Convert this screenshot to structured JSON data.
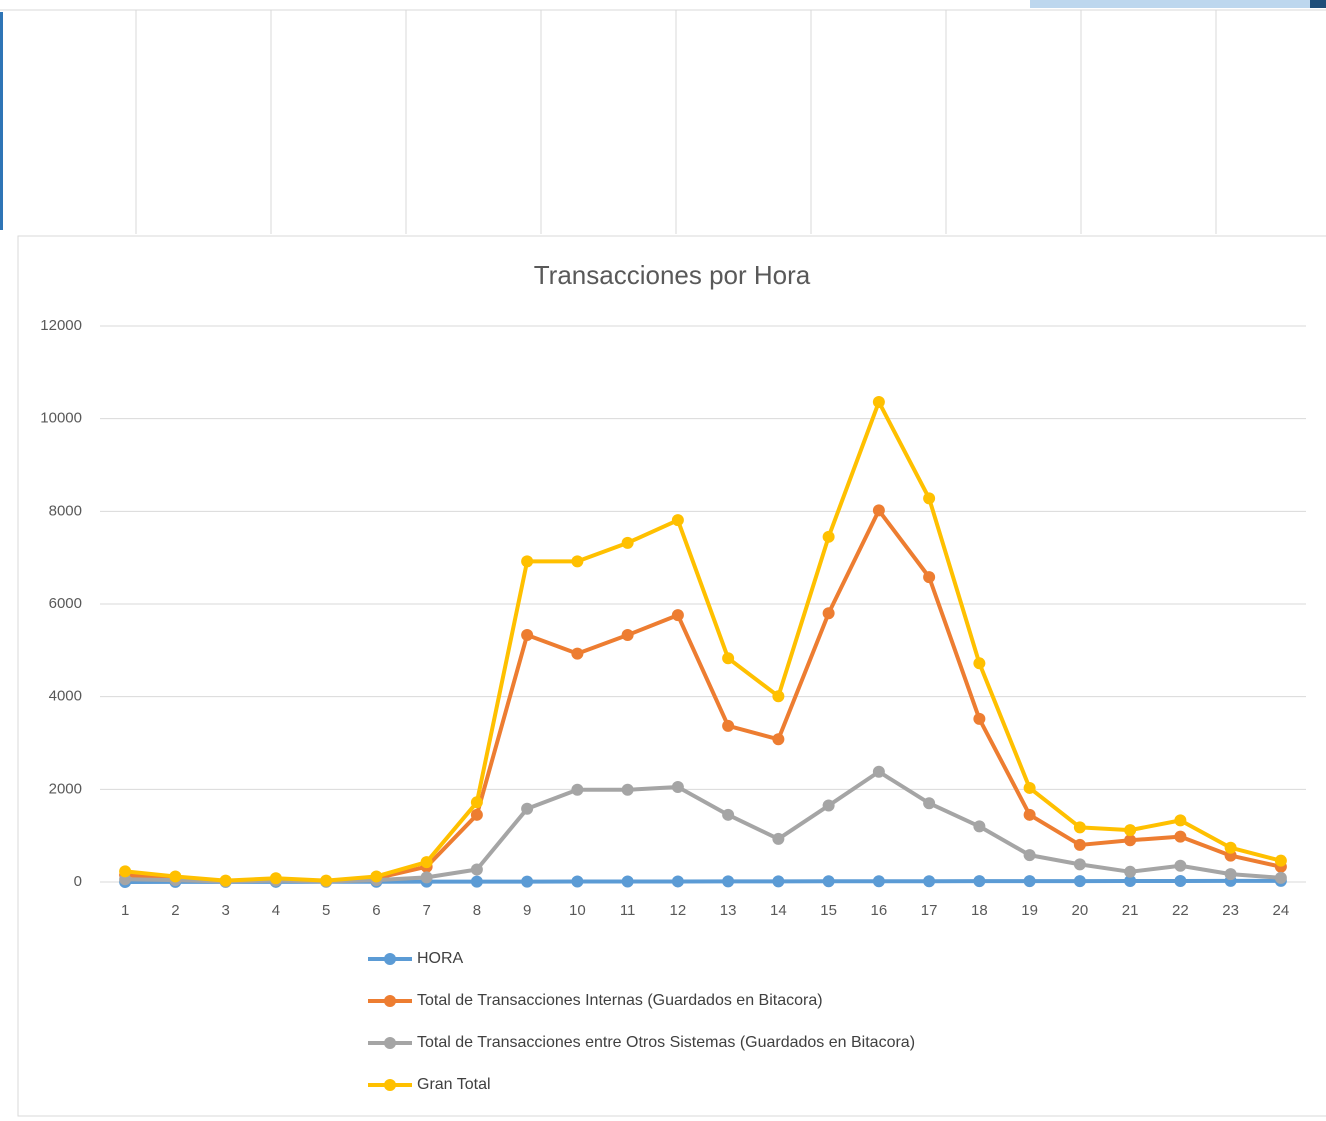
{
  "chart_data": {
    "type": "line",
    "title": "Transacciones por Hora",
    "categories": [
      "1",
      "2",
      "3",
      "4",
      "5",
      "6",
      "7",
      "8",
      "9",
      "10",
      "11",
      "12",
      "13",
      "14",
      "15",
      "16",
      "17",
      "18",
      "19",
      "20",
      "21",
      "22",
      "23",
      "24"
    ],
    "series": [
      {
        "name": "HORA",
        "color": "#5b9bd5",
        "values": [
          1,
          2,
          3,
          4,
          5,
          6,
          7,
          8,
          9,
          10,
          11,
          12,
          13,
          14,
          15,
          16,
          17,
          18,
          19,
          20,
          21,
          22,
          23,
          24
        ]
      },
      {
        "name": "Total de Transacciones Internas (Guardados en Bitacora)",
        "color": "#ed7d31",
        "values": [
          150,
          80,
          20,
          50,
          20,
          80,
          330,
          1450,
          5330,
          4930,
          5330,
          5760,
          3370,
          3080,
          5800,
          8020,
          6580,
          3520,
          1450,
          800,
          900,
          980,
          570,
          330
        ]
      },
      {
        "name": "Total de Transacciones entre Otros Sistemas (Guardados en Bitacora)",
        "color": "#a5a5a5",
        "values": [
          60,
          40,
          10,
          30,
          10,
          40,
          100,
          270,
          1580,
          1990,
          1990,
          2050,
          1450,
          930,
          1650,
          2380,
          1700,
          1200,
          580,
          380,
          220,
          350,
          170,
          90
        ]
      },
      {
        "name": "Gran Total",
        "color": "#ffc000",
        "values": [
          230,
          120,
          30,
          80,
          30,
          120,
          430,
          1720,
          6920,
          6920,
          7320,
          7810,
          4830,
          4010,
          7450,
          10360,
          8280,
          4720,
          2030,
          1180,
          1120,
          1330,
          740,
          460
        ]
      }
    ],
    "ylim": [
      0,
      12000
    ],
    "yticks": [
      0,
      2000,
      4000,
      6000,
      8000,
      10000,
      12000
    ],
    "grid": true,
    "legend": "bottom"
  }
}
